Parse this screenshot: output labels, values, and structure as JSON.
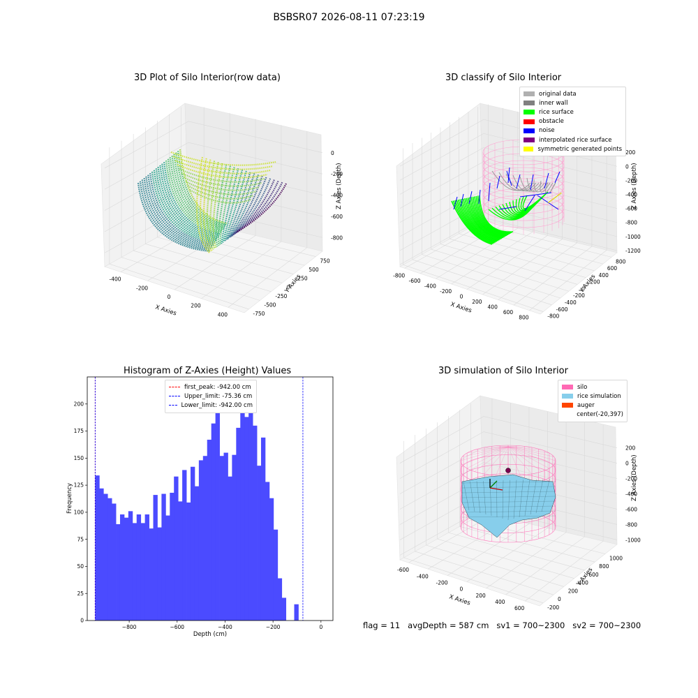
{
  "suptitle": "BSBSR07 2026-08-11 07:23:19",
  "footer": {
    "flag": "flag = 11",
    "avg_depth": "avgDepth = 587 cm",
    "sv1": "sv1 = 700~2300",
    "sv2": "sv2 = 700~2300"
  },
  "colors": {
    "rice_surface": "#00ff00",
    "noise": "#0000ff",
    "silo": "#ff69b4",
    "rice_sim": "#87ceeb",
    "auger": "#ff4500",
    "bars": "#4b4bff"
  },
  "chart_data": [
    {
      "type": "scatter",
      "title": "3D Plot of Silo Interior(row data)",
      "xlabel": "X Axies",
      "ylabel": "Y Axies",
      "zlabel": "Z Axies (Depth)",
      "x_ticks": [
        "-400",
        "-200",
        "0",
        "200",
        "400"
      ],
      "y_ticks": [
        "-750",
        "-500",
        "-250",
        "0",
        "250",
        "500",
        "750"
      ],
      "z_ticks": [
        "-800",
        "-600",
        "-400",
        "-200",
        "0"
      ]
    },
    {
      "type": "scatter",
      "title": "3D classify of Silo Interior",
      "xlabel": "X Axies",
      "ylabel": "Y Axies",
      "zlabel": "Z Axies (Depth)",
      "x_ticks": [
        "-800",
        "-600",
        "-400",
        "-200",
        "0",
        "200",
        "400",
        "600",
        "800"
      ],
      "y_ticks": [
        "-800",
        "-600",
        "-400",
        "-200",
        "0",
        "200",
        "400",
        "600",
        "800"
      ],
      "z_ticks": [
        "-1200",
        "-1000",
        "-800",
        "-600",
        "-400",
        "-200",
        "0",
        "200"
      ],
      "legend": [
        {
          "label": "original data",
          "color": "#b0b0b0"
        },
        {
          "label": "inner wall",
          "color": "#808080"
        },
        {
          "label": "rice surface",
          "color": "#00ff00"
        },
        {
          "label": "obstacle",
          "color": "#ff0000"
        },
        {
          "label": "noise",
          "color": "#0000ff"
        },
        {
          "label": "interpolated rice surface",
          "color": "#800080"
        },
        {
          "label": "symmetric generated points",
          "color": "#ffff00"
        }
      ]
    },
    {
      "type": "bar",
      "title": "Histogram of Z-Axies (Height) Values",
      "xlabel": "Depth (cm)",
      "ylabel": "Frequency",
      "xlim": [
        -975,
        50
      ],
      "ylim": [
        0,
        225
      ],
      "x_ticks": [
        -800,
        -600,
        -400,
        -200,
        0
      ],
      "y_ticks": [
        0,
        25,
        50,
        75,
        100,
        125,
        150,
        175,
        200
      ],
      "bin_start": -942,
      "bin_width": 17.3,
      "values": [
        134,
        122,
        117,
        113,
        108,
        89,
        98,
        95,
        101,
        90,
        98,
        90,
        98,
        85,
        116,
        86,
        117,
        97,
        118,
        133,
        110,
        139,
        109,
        142,
        124,
        148,
        152,
        167,
        182,
        198,
        152,
        155,
        133,
        153,
        178,
        213,
        188,
        202,
        180,
        143,
        169,
        128,
        113,
        84,
        39,
        21,
        0,
        0,
        15
      ],
      "vlines": [
        {
          "label": "first_peak: -942.00 cm",
          "value": -942.0,
          "color": "#ff0000"
        },
        {
          "label": "Upper_limit: -75.36 cm",
          "value": -75.36,
          "color": "#0000ff"
        },
        {
          "label": "Lower_limit: -942.00 cm",
          "value": -942.0,
          "color": "#0000ff"
        }
      ]
    },
    {
      "type": "scatter",
      "title": "3D simulation of Silo Interior",
      "xlabel": "X Axies",
      "ylabel": "Y Axies",
      "zlabel": "Z Axies (Depth)",
      "x_ticks": [
        "-600",
        "-400",
        "-200",
        "0",
        "200",
        "400",
        "600"
      ],
      "y_ticks": [
        "-200",
        "0",
        "200",
        "400",
        "600",
        "800",
        "1000"
      ],
      "z_ticks": [
        "-1000",
        "-800",
        "-600",
        "-400",
        "-200",
        "0",
        "200"
      ],
      "legend": [
        {
          "label": "silo",
          "color": "#ff69b4"
        },
        {
          "label": "rice simulation",
          "color": "#87ceeb"
        },
        {
          "label": "auger",
          "color": "#ff4500"
        },
        {
          "label": "center(-20,397)",
          "color": ""
        }
      ]
    }
  ]
}
